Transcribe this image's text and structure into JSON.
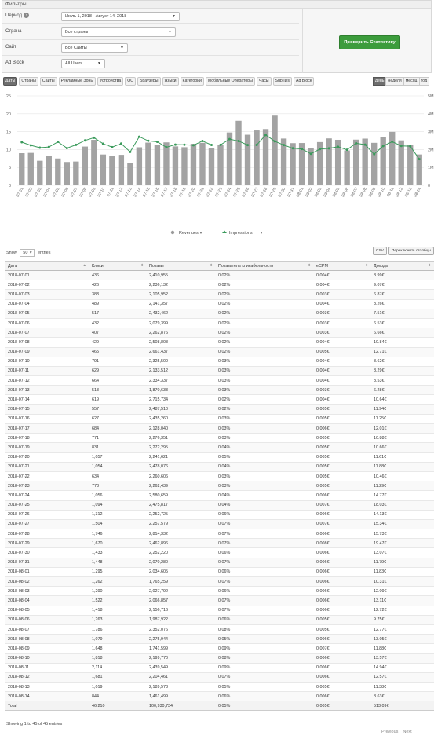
{
  "filters": {
    "title": "Фильтры",
    "period_label": "Период",
    "period_value": "Июль 1, 2018 - Август 14, 2018",
    "country_label": "Страна",
    "country_value": "Все страны",
    "site_label": "Сайт",
    "site_value": "Все Сайты",
    "adblock_label": "Ad Block",
    "adblock_value": "All Users",
    "check_button": "Проверить Статистику"
  },
  "tabs": [
    "Даты",
    "Страны",
    "Сайты",
    "Рекламные Зоны",
    "Устройства",
    "ОС",
    "Браузеры",
    "Языки",
    "Категории",
    "Мобильные Операторы",
    "Часы",
    "Sub IDs",
    "Ad Block"
  ],
  "period_tabs": [
    "день",
    "неделя",
    "месяц",
    "год"
  ],
  "chart_data": {
    "type": "bar",
    "categories": [
      "07-01",
      "07-02",
      "07-03",
      "07-04",
      "07-05",
      "07-06",
      "07-07",
      "07-08",
      "07-09",
      "07-10",
      "07-11",
      "07-12",
      "07-13",
      "07-14",
      "07-15",
      "07-16",
      "07-17",
      "07-18",
      "07-19",
      "07-20",
      "07-21",
      "07-22",
      "07-23",
      "07-24",
      "07-25",
      "07-26",
      "07-27",
      "07-28",
      "07-29",
      "07-30",
      "07-31",
      "08-01",
      "08-02",
      "08-03",
      "08-04",
      "08-05",
      "08-06",
      "08-07",
      "08-08",
      "08-09",
      "08-10",
      "08-11",
      "08-12",
      "08-13",
      "08-14"
    ],
    "series": [
      {
        "name": "Revenues",
        "type": "bar",
        "axis": "left",
        "color": "#a3a3a3",
        "values": [
          8.99,
          9.07,
          6.87,
          8.26,
          7.51,
          6.53,
          6.66,
          10.84,
          12.71,
          8.62,
          8.29,
          8.53,
          6.28,
          10.64,
          11.94,
          11.25,
          12.01,
          10.88,
          10.66,
          11.61,
          11.88,
          10.46,
          11.29,
          14.77,
          18.03,
          14.13,
          15.34,
          15.73,
          19.47,
          13.07,
          11.79,
          11.83,
          10.31,
          12.09,
          13.11,
          12.72,
          9.75,
          12.77,
          13.05,
          11.88,
          13.57,
          14.94,
          12.57,
          11.38,
          8.63
        ]
      },
      {
        "name": "Impressions",
        "type": "line",
        "axis": "right",
        "color": "#3a9a5b",
        "values": [
          2410955,
          2236132,
          2105952,
          2141357,
          2432462,
          2079399,
          2262876,
          2508808,
          2661437,
          2325500,
          2133512,
          2334337,
          1870633,
          2715734,
          2487510,
          2435260,
          2128040,
          2276351,
          2272295,
          2241621,
          2478076,
          2260606,
          2262439,
          2580659,
          2475817,
          2252725,
          2257579,
          2814332,
          2462896,
          2252220,
          2070280,
          2034605,
          1765259,
          2027792,
          2066857,
          2156716,
          1987922,
          2352076,
          2275944,
          1741599,
          2199770,
          2439549,
          2204461,
          2189573,
          1461499
        ]
      }
    ],
    "y_left": {
      "ticks": [
        0,
        5,
        10,
        15,
        20,
        25
      ],
      "labels": [
        "0",
        "5",
        "10",
        "15",
        "20",
        "25"
      ],
      "lim": [
        0,
        25
      ]
    },
    "y_right": {
      "ticks": [
        0,
        1000000,
        2000000,
        3000000,
        4000000,
        5000000
      ],
      "labels": [
        "0",
        "1M",
        "2M",
        "3M",
        "4M",
        "5M"
      ],
      "lim": [
        0,
        5000000
      ]
    },
    "legend": [
      "Revenues",
      "Impressions"
    ],
    "legend_position": "bottom"
  },
  "table_controls": {
    "show_label": "Show",
    "show_value": "50",
    "entries_label": "entries",
    "csv_button": "CSV",
    "columns_button": "Переключить столбцы"
  },
  "table": {
    "headers": [
      "Дата",
      "Клики",
      "Показы",
      "Показатель кликабельности",
      "eCPM",
      "Доходы"
    ],
    "rows": [
      [
        "2018-07-01",
        "436",
        "2,410,955",
        "0.02%",
        "0.004€",
        "8.99€"
      ],
      [
        "2018-07-02",
        "426",
        "2,236,132",
        "0.02%",
        "0.004€",
        "9.07€"
      ],
      [
        "2018-07-03",
        "383",
        "2,105,952",
        "0.02%",
        "0.003€",
        "6.87€"
      ],
      [
        "2018-07-04",
        "489",
        "2,141,357",
        "0.02%",
        "0.004€",
        "8.26€"
      ],
      [
        "2018-07-05",
        "517",
        "2,432,462",
        "0.02%",
        "0.003€",
        "7.51€"
      ],
      [
        "2018-07-06",
        "432",
        "2,079,399",
        "0.02%",
        "0.003€",
        "6.53€"
      ],
      [
        "2018-07-07",
        "407",
        "2,262,876",
        "0.02%",
        "0.003€",
        "6.66€"
      ],
      [
        "2018-07-08",
        "429",
        "2,508,808",
        "0.02%",
        "0.004€",
        "10.84€"
      ],
      [
        "2018-07-09",
        "465",
        "2,661,437",
        "0.02%",
        "0.005€",
        "12.71€"
      ],
      [
        "2018-07-10",
        "791",
        "2,325,500",
        "0.03%",
        "0.004€",
        "8.62€"
      ],
      [
        "2018-07-11",
        "629",
        "2,133,512",
        "0.03%",
        "0.004€",
        "8.29€"
      ],
      [
        "2018-07-12",
        "664",
        "2,334,337",
        "0.03%",
        "0.004€",
        "8.53€"
      ],
      [
        "2018-07-13",
        "513",
        "1,870,633",
        "0.03%",
        "0.003€",
        "6.28€"
      ],
      [
        "2018-07-14",
        "619",
        "2,715,734",
        "0.02%",
        "0.004€",
        "10.64€"
      ],
      [
        "2018-07-15",
        "557",
        "2,487,510",
        "0.02%",
        "0.005€",
        "11.94€"
      ],
      [
        "2018-07-16",
        "627",
        "2,435,260",
        "0.03%",
        "0.005€",
        "11.25€"
      ],
      [
        "2018-07-17",
        "684",
        "2,128,040",
        "0.03%",
        "0.006€",
        "12.01€"
      ],
      [
        "2018-07-18",
        "771",
        "2,276,351",
        "0.03%",
        "0.005€",
        "10.88€"
      ],
      [
        "2018-07-19",
        "831",
        "2,272,295",
        "0.04%",
        "0.005€",
        "10.66€"
      ],
      [
        "2018-07-20",
        "1,057",
        "2,241,621",
        "0.05%",
        "0.005€",
        "11.61€"
      ],
      [
        "2018-07-21",
        "1,054",
        "2,478,076",
        "0.04%",
        "0.005€",
        "11.88€"
      ],
      [
        "2018-07-22",
        "634",
        "2,260,606",
        "0.03%",
        "0.005€",
        "10.46€"
      ],
      [
        "2018-07-23",
        "773",
        "2,262,439",
        "0.03%",
        "0.005€",
        "11.29€"
      ],
      [
        "2018-07-24",
        "1,056",
        "2,580,659",
        "0.04%",
        "0.006€",
        "14.77€"
      ],
      [
        "2018-07-25",
        "1,094",
        "2,475,817",
        "0.04%",
        "0.007€",
        "18.03€"
      ],
      [
        "2018-07-26",
        "1,312",
        "2,252,725",
        "0.06%",
        "0.006€",
        "14.13€"
      ],
      [
        "2018-07-27",
        "1,504",
        "2,257,579",
        "0.07%",
        "0.007€",
        "15.34€"
      ],
      [
        "2018-07-28",
        "1,746",
        "2,814,332",
        "0.07%",
        "0.006€",
        "15.73€"
      ],
      [
        "2018-07-29",
        "1,670",
        "2,462,896",
        "0.07%",
        "0.008€",
        "19.47€"
      ],
      [
        "2018-07-30",
        "1,433",
        "2,252,220",
        "0.06%",
        "0.006€",
        "13.07€"
      ],
      [
        "2018-07-31",
        "1,448",
        "2,070,280",
        "0.07%",
        "0.006€",
        "11.79€"
      ],
      [
        "2018-08-01",
        "1,295",
        "2,034,605",
        "0.06%",
        "0.006€",
        "11.83€"
      ],
      [
        "2018-08-02",
        "1,262",
        "1,765,259",
        "0.07%",
        "0.006€",
        "10.31€"
      ],
      [
        "2018-08-03",
        "1,290",
        "2,027,792",
        "0.06%",
        "0.006€",
        "12.09€"
      ],
      [
        "2018-08-04",
        "1,522",
        "2,066,857",
        "0.07%",
        "0.006€",
        "13.11€"
      ],
      [
        "2018-08-05",
        "1,418",
        "2,156,716",
        "0.07%",
        "0.006€",
        "12.72€"
      ],
      [
        "2018-08-06",
        "1,263",
        "1,987,922",
        "0.06%",
        "0.005€",
        "9.75€"
      ],
      [
        "2018-08-07",
        "1,786",
        "2,352,076",
        "0.08%",
        "0.005€",
        "12.77€"
      ],
      [
        "2018-08-08",
        "1,079",
        "2,275,944",
        "0.05%",
        "0.006€",
        "13.05€"
      ],
      [
        "2018-08-09",
        "1,648",
        "1,741,599",
        "0.09%",
        "0.007€",
        "11.88€"
      ],
      [
        "2018-08-10",
        "1,818",
        "2,199,770",
        "0.08%",
        "0.006€",
        "13.57€"
      ],
      [
        "2018-08-11",
        "2,114",
        "2,439,549",
        "0.09%",
        "0.006€",
        "14.94€"
      ],
      [
        "2018-08-12",
        "1,681",
        "2,204,461",
        "0.07%",
        "0.006€",
        "12.57€"
      ],
      [
        "2018-08-13",
        "1,019",
        "2,189,573",
        "0.05%",
        "0.005€",
        "11.38€"
      ],
      [
        "2018-08-14",
        "844",
        "1,461,499",
        "0.06%",
        "0.006€",
        "8.63€"
      ]
    ],
    "total": [
      "Total",
      "46,210",
      "100,930,734",
      "0.05%",
      "0.005€",
      "513.09€"
    ]
  },
  "footer": {
    "info": "Showing 1 to 45 of 45 entries",
    "previous": "Previous",
    "next": "Next"
  }
}
